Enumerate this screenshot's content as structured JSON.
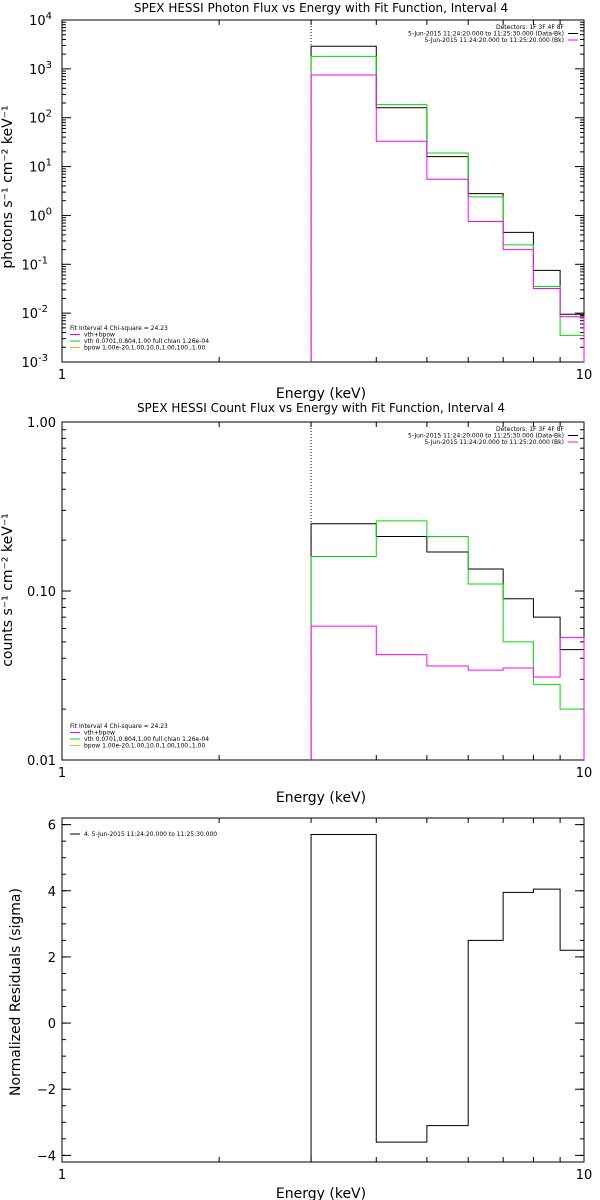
{
  "colors": {
    "data": "#000000",
    "fit_total": "#ff00ff",
    "vth": "#00dd00",
    "bpow": "#e6c200",
    "background": "#ffffff"
  },
  "chart_data": [
    {
      "type": "line",
      "title": "SPEX HESSI Photon Flux vs Energy with Fit Function, Interval 4",
      "xlabel": "Energy (keV)",
      "ylabel": "photons s⁻¹ cm⁻² keV⁻¹",
      "xscale": "log",
      "yscale": "log",
      "xlim": [
        1,
        10
      ],
      "ylim": [
        0.001,
        10000
      ],
      "xticks": [
        {
          "v": 1,
          "label": "1"
        },
        {
          "v": 10,
          "label": "10"
        }
      ],
      "yticks": [
        {
          "v": 0.001,
          "base": "10",
          "exp": "-3"
        },
        {
          "v": 0.01,
          "base": "10",
          "exp": "-2"
        },
        {
          "v": 0.1,
          "base": "10",
          "exp": "-1"
        },
        {
          "v": 1,
          "base": "10",
          "exp": "0"
        },
        {
          "v": 10,
          "base": "10",
          "exp": "1"
        },
        {
          "v": 100,
          "base": "10",
          "exp": "2"
        },
        {
          "v": 1000,
          "base": "10",
          "exp": "3"
        },
        {
          "v": 10000,
          "base": "10",
          "exp": "4"
        }
      ],
      "vline": 3.0,
      "edges": [
        3,
        4,
        5,
        6,
        7,
        8,
        9,
        10
      ],
      "series": [
        {
          "color": "#000000",
          "values": [
            2900,
            160,
            16,
            2.8,
            0.45,
            0.075,
            0.0095
          ]
        },
        {
          "color": "#00dd00",
          "values": [
            1800,
            185,
            19,
            2.4,
            0.25,
            0.035,
            0.0035
          ]
        },
        {
          "color": "#ff00ff",
          "values": [
            750,
            33,
            5.5,
            0.75,
            0.2,
            0.032,
            0.0085
          ]
        }
      ],
      "legend_tr": [
        {
          "text": "Detectors: 1F 3F 4F 8F",
          "color": null
        },
        {
          "text": "5-Jun-2015 11:24:20.000 to 11:25:30.000 (Data-Bk)",
          "color": "#000000"
        },
        {
          "text": "5-Jun-2015 11:24:20.000 to 11:25:20.000 (Bk)",
          "color": "#ff00ff"
        }
      ],
      "legend_bl": [
        {
          "text": "Fit Interval 4   Chi-square = 24.23",
          "color": null
        },
        {
          "text": "vth+bpow",
          "color": "#ff00ff"
        },
        {
          "text": "vth 0.0701,0.804,1.00  full chian 1.26e-04",
          "color": "#00dd00"
        },
        {
          "text": "bpow 1.00e-20,1.00,10.0,1.00,100.,1.00",
          "color": "#e6c200"
        }
      ]
    },
    {
      "type": "line",
      "title": "SPEX HESSI Count Flux vs Energy with Fit Function, Interval 4",
      "xlabel": "Energy (keV)",
      "ylabel": "counts s⁻¹ cm⁻² keV⁻¹",
      "xscale": "log",
      "yscale": "log",
      "xlim": [
        1,
        10
      ],
      "ylim": [
        0.01,
        1.0
      ],
      "xticks": [
        {
          "v": 1,
          "label": "1"
        },
        {
          "v": 10,
          "label": "10"
        }
      ],
      "yticks": [
        {
          "v": 0.01,
          "label": "0.01"
        },
        {
          "v": 0.1,
          "label": "0.10"
        },
        {
          "v": 1.0,
          "label": "1.00"
        }
      ],
      "vline": 3.0,
      "edges": [
        3,
        4,
        5,
        6,
        7,
        8,
        9,
        10
      ],
      "series": [
        {
          "color": "#000000",
          "values": [
            0.25,
            0.21,
            0.17,
            0.135,
            0.09,
            0.07,
            0.045
          ]
        },
        {
          "color": "#00dd00",
          "values": [
            0.16,
            0.26,
            0.21,
            0.11,
            0.05,
            0.028,
            0.02
          ]
        },
        {
          "color": "#ff00ff",
          "values": [
            0.062,
            0.042,
            0.036,
            0.034,
            0.035,
            0.031,
            0.053
          ]
        }
      ],
      "legend_tr": [
        {
          "text": "Detectors: 1F 3F 4F 8F",
          "color": null
        },
        {
          "text": "5-Jun-2015 11:24:20.000 to 11:25:30.000 (Data-Bk)",
          "color": "#000000"
        },
        {
          "text": "5-Jun-2015 11:24:20.000 to 11:25:20.000 (Bk)",
          "color": "#ff00ff"
        }
      ],
      "legend_bl": [
        {
          "text": "Fit Interval 4   Chi-square = 24.23",
          "color": null
        },
        {
          "text": "vth+bpow",
          "color": "#ff00ff"
        },
        {
          "text": "vth 0.0701,0.804,1.00  full chian 1.26e-04",
          "color": "#00dd00"
        },
        {
          "text": "bpow 1.00e-20,1.00,10.0,1.00,100.,1.00",
          "color": "#e6c200"
        }
      ]
    },
    {
      "type": "line",
      "title": "",
      "xlabel": "Energy (keV)",
      "ylabel": "Normalized Residuals (sigma)",
      "xscale": "log",
      "yscale": "linear",
      "xlim": [
        1,
        10
      ],
      "ylim": [
        -4.2,
        6.2
      ],
      "xticks": [
        {
          "v": 1,
          "label": "1"
        },
        {
          "v": 10,
          "label": "10"
        }
      ],
      "yticks": [
        {
          "v": -4,
          "label": "−4"
        },
        {
          "v": -2,
          "label": "−2"
        },
        {
          "v": 0,
          "label": "0"
        },
        {
          "v": 2,
          "label": "2"
        },
        {
          "v": 4,
          "label": "4"
        },
        {
          "v": 6,
          "label": "6"
        }
      ],
      "edges": [
        3,
        4,
        5,
        6,
        7,
        8,
        9,
        10
      ],
      "series": [
        {
          "color": "#000000",
          "values": [
            5.7,
            -3.6,
            -3.1,
            2.5,
            3.95,
            4.05,
            2.2
          ]
        }
      ],
      "legend_tl": [
        {
          "text": "4.  5-Jun-2015 11:24:20.000 to 11:25:30.000",
          "color": "#000000"
        }
      ]
    }
  ]
}
